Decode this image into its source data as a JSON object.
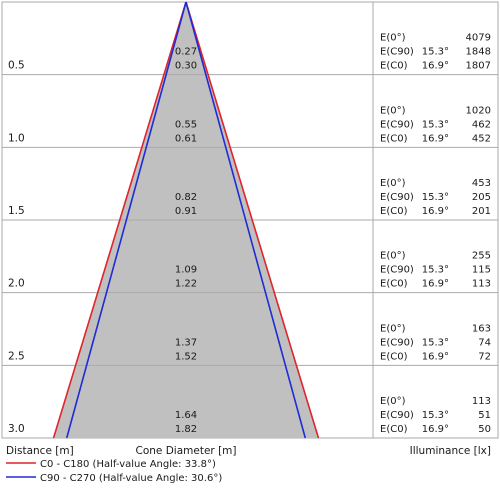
{
  "chart_data": {
    "type": "table",
    "title": "",
    "distances": [
      "0.5",
      "1.0",
      "1.5",
      "2.0",
      "2.5",
      "3.0"
    ],
    "cone_diameter_c90": [
      "0.27",
      "0.55",
      "0.82",
      "1.09",
      "1.37",
      "1.64"
    ],
    "cone_diameter_c0": [
      "0.30",
      "0.61",
      "0.91",
      "1.22",
      "1.52",
      "1.82"
    ],
    "illuminance": [
      {
        "e0": "4079",
        "ec90": "1848",
        "ec0": "1807"
      },
      {
        "e0": "1020",
        "ec90": "462",
        "ec0": "452"
      },
      {
        "e0": "453",
        "ec90": "205",
        "ec0": "201"
      },
      {
        "e0": "255",
        "ec90": "115",
        "ec0": "113"
      },
      {
        "e0": "163",
        "ec90": "74",
        "ec0": "72"
      },
      {
        "e0": "113",
        "ec90": "51",
        "ec0": "50"
      }
    ],
    "labels": {
      "e0": "E(0°)",
      "ec90": "E(C90)",
      "ec0": "E(C0)",
      "angle_c90": "15.3°",
      "angle_c0": "16.9°"
    },
    "headers": {
      "distance": "Distance [m]",
      "cone": "Cone Diameter [m]",
      "illuminance": "Illuminance [lx]"
    },
    "series": [
      {
        "name": "C0 - C180 (Half-value Angle: 33.8°)",
        "color": "#e0242b",
        "half_angle_deg": 16.9
      },
      {
        "name": "C90 - C270 (Half-value Angle: 30.6°)",
        "color": "#1f2bd6",
        "half_angle_deg": 15.3
      }
    ],
    "fill_color": "#c0c0c0"
  }
}
